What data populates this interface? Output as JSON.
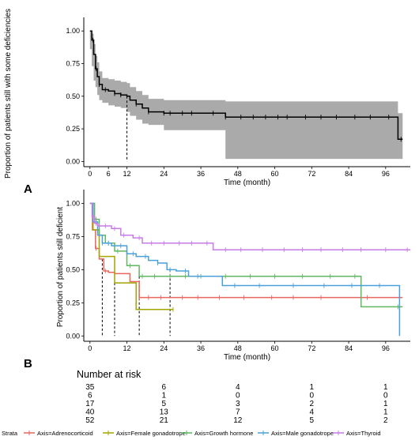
{
  "chart_data": [
    {
      "type": "line",
      "panel_label": "A",
      "ylabel": "Proportion of patients still with some deficiencies",
      "xlabel": "Time (month)",
      "xlim": [
        -2,
        104
      ],
      "ylim": [
        -0.04,
        1.08
      ],
      "x_ticks": [
        0,
        6,
        12,
        24,
        36,
        48,
        60,
        72,
        84,
        96
      ],
      "y_ticks": [
        0.0,
        0.25,
        0.5,
        0.75,
        1.0
      ],
      "y_tick_labels": [
        "0.00",
        "0.25",
        "0.50",
        "0.75",
        "1.00"
      ],
      "median_time": 12,
      "series": [
        {
          "color": "#000000",
          "ci_color": "#aaaaaa",
          "x": [
            0,
            0.6,
            1.2,
            1.8,
            2.4,
            3,
            4,
            6,
            8,
            10,
            12,
            13,
            15,
            17,
            19,
            24,
            44,
            100,
            101.5
          ],
          "y": [
            1.0,
            0.93,
            0.82,
            0.71,
            0.65,
            0.59,
            0.55,
            0.54,
            0.52,
            0.51,
            0.5,
            0.47,
            0.44,
            0.41,
            0.38,
            0.37,
            0.34,
            0.17,
            0.17
          ],
          "ci_upper": [
            1.0,
            0.98,
            0.9,
            0.81,
            0.76,
            0.69,
            0.64,
            0.63,
            0.62,
            0.61,
            0.6,
            0.57,
            0.54,
            0.51,
            0.48,
            0.47,
            0.46,
            0.37,
            0.37
          ],
          "ci_lower": [
            1.0,
            0.86,
            0.73,
            0.62,
            0.57,
            0.51,
            0.47,
            0.45,
            0.43,
            0.42,
            0.41,
            0.38,
            0.35,
            0.32,
            0.29,
            0.28,
            0.24,
            0.02,
            0.02
          ],
          "censor_x": [
            1,
            2,
            3,
            5,
            8,
            10,
            15,
            19,
            24,
            26,
            30,
            33,
            40,
            44,
            49,
            53,
            57,
            61,
            64,
            70,
            75,
            80,
            86,
            91,
            97,
            101
          ]
        }
      ]
    },
    {
      "type": "line",
      "panel_label": "B",
      "ylabel": "Proportion of patients still deficient",
      "xlabel": "Time (month)",
      "xlim": [
        -2,
        104
      ],
      "ylim": [
        -0.04,
        1.08
      ],
      "x_ticks": [
        0,
        12,
        24,
        36,
        48,
        60,
        72,
        84,
        96
      ],
      "y_ticks": [
        0.0,
        0.25,
        0.5,
        0.75,
        1.0
      ],
      "y_tick_labels": [
        "0.00",
        "0.25",
        "0.50",
        "0.75",
        "1.00"
      ],
      "legend_title": "Strata",
      "legend_position": "bottom",
      "series": [
        {
          "name": "Axis=Adrenocorticoid",
          "color": "#e8675f",
          "x": [
            0,
            0.8,
            1.8,
            3,
            4.5,
            6,
            8,
            13,
            16,
            101.5
          ],
          "y": [
            1.0,
            0.8,
            0.66,
            0.58,
            0.49,
            0.48,
            0.47,
            0.41,
            0.29,
            0.29
          ],
          "censor_x": [
            2,
            5,
            8,
            16,
            19,
            23,
            30,
            35,
            42,
            50,
            59,
            66,
            75,
            90
          ],
          "median": 4
        },
        {
          "name": "Axis=Female gonadotrope",
          "color": "#a3a500",
          "x": [
            0,
            1,
            3,
            8,
            15,
            27
          ],
          "y": [
            1.0,
            0.8,
            0.6,
            0.4,
            0.2,
            0.2
          ],
          "censor_x": [
            27
          ],
          "median": 8
        },
        {
          "name": "Axis=Growth hormone",
          "color": "#5fb760",
          "x": [
            0,
            1.5,
            3,
            5,
            8,
            12,
            16,
            88,
            101.5
          ],
          "y": [
            1.0,
            0.88,
            0.76,
            0.7,
            0.64,
            0.53,
            0.45,
            0.22,
            0.22
          ],
          "censor_x": [
            2,
            6,
            9,
            13,
            17,
            21,
            26,
            31,
            36,
            44,
            52,
            60,
            69,
            78,
            86,
            100
          ],
          "median": 16
        },
        {
          "name": "Axis=Male gonadotrope",
          "color": "#4aa0d8",
          "x": [
            0,
            1,
            2.5,
            4,
            7,
            12,
            15,
            19,
            22,
            25,
            28,
            32,
            43,
            100,
            100.5
          ],
          "y": [
            1.0,
            0.86,
            0.76,
            0.7,
            0.68,
            0.62,
            0.6,
            0.57,
            0.55,
            0.5,
            0.49,
            0.45,
            0.38,
            0.38,
            0.0
          ],
          "censor_x": [
            2,
            4,
            6,
            10,
            14,
            18,
            22,
            26,
            31,
            35,
            47,
            55,
            66,
            76,
            85,
            94
          ],
          "median": 26
        },
        {
          "name": "Axis=Thyroid",
          "color": "#c77be7",
          "x": [
            0,
            0.7,
            1.5,
            2.5,
            4,
            7,
            10,
            14,
            17,
            40,
            104
          ],
          "y": [
            1.0,
            0.9,
            0.85,
            0.83,
            0.83,
            0.81,
            0.76,
            0.74,
            0.7,
            0.65,
            0.65
          ],
          "censor_x": [
            1,
            2,
            3,
            5,
            8,
            11,
            16,
            20,
            24,
            29,
            33,
            38,
            44,
            49,
            56,
            63,
            69,
            75,
            82,
            88,
            96,
            103
          ]
        }
      ]
    }
  ],
  "risk_table": {
    "title": "Number at risk",
    "times": [
      0,
      24,
      48,
      72,
      96
    ],
    "rows": [
      {
        "color": "#e8675f",
        "values": [
          "35",
          "6",
          "4",
          "1",
          "1"
        ]
      },
      {
        "color": "#a3a500",
        "values": [
          "6",
          "1",
          "0",
          "0",
          "0"
        ]
      },
      {
        "color": "#5fb760",
        "values": [
          "17",
          "5",
          "3",
          "2",
          "1"
        ]
      },
      {
        "color": "#4aa0d8",
        "values": [
          "40",
          "13",
          "7",
          "4",
          "1"
        ]
      },
      {
        "color": "#c77be7",
        "values": [
          "52",
          "21",
          "12",
          "5",
          "2"
        ]
      }
    ]
  }
}
